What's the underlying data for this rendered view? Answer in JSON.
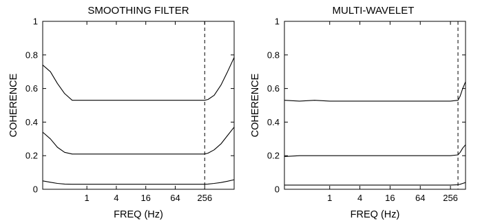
{
  "chart_data": [
    {
      "type": "line",
      "title": "SMOOTHING FILTER",
      "xlabel": "FREQ (Hz)",
      "ylabel": "COHERENCE",
      "x_scale": "log2",
      "xlim": [
        0.125,
        1024
      ],
      "ylim": [
        0,
        1
      ],
      "x_ticks": [
        1,
        4,
        16,
        64,
        256
      ],
      "x_tick_labels": [
        "1",
        "4",
        "16",
        "64",
        "256"
      ],
      "y_ticks": [
        0,
        0.2,
        0.4,
        0.6,
        0.8,
        1
      ],
      "y_tick_labels": [
        "0",
        "0.2",
        "0.4",
        "0.6",
        "0.8",
        "1"
      ],
      "grid": false,
      "vline": {
        "x": 256,
        "style": "dashed"
      },
      "series": [
        {
          "x": [
            0.125,
            0.18,
            0.25,
            0.35,
            0.5,
            1,
            2,
            4,
            8,
            16,
            32,
            64,
            128,
            256,
            300,
            400,
            550,
            750,
            1024
          ],
          "y": [
            0.74,
            0.7,
            0.63,
            0.57,
            0.53,
            0.53,
            0.53,
            0.53,
            0.53,
            0.53,
            0.53,
            0.53,
            0.53,
            0.53,
            0.535,
            0.56,
            0.62,
            0.7,
            0.785
          ]
        },
        {
          "x": [
            0.125,
            0.18,
            0.25,
            0.35,
            0.5,
            1,
            2,
            4,
            8,
            16,
            32,
            64,
            128,
            256,
            300,
            400,
            550,
            750,
            1024
          ],
          "y": [
            0.34,
            0.3,
            0.25,
            0.22,
            0.21,
            0.21,
            0.21,
            0.21,
            0.21,
            0.21,
            0.21,
            0.21,
            0.21,
            0.21,
            0.215,
            0.235,
            0.27,
            0.32,
            0.37
          ]
        },
        {
          "x": [
            0.125,
            0.18,
            0.25,
            0.35,
            0.5,
            1,
            4,
            16,
            64,
            256,
            300,
            400,
            550,
            750,
            1024
          ],
          "y": [
            0.05,
            0.042,
            0.035,
            0.031,
            0.03,
            0.03,
            0.03,
            0.03,
            0.03,
            0.03,
            0.031,
            0.035,
            0.04,
            0.048,
            0.057
          ]
        }
      ]
    },
    {
      "type": "line",
      "title": "MULTI-WAVELET",
      "xlabel": "FREQ (Hz)",
      "ylabel": "COHERENCE",
      "x_scale": "log2",
      "xlim": [
        0.125,
        512
      ],
      "ylim": [
        0,
        1
      ],
      "x_ticks": [
        1,
        4,
        16,
        64,
        256
      ],
      "x_tick_labels": [
        "1",
        "4",
        "16",
        "64",
        "256"
      ],
      "y_ticks": [
        0,
        0.2,
        0.4,
        0.6,
        0.8,
        1
      ],
      "y_tick_labels": [
        "0",
        "0.2",
        "0.4",
        "0.6",
        "0.8",
        "1"
      ],
      "grid": false,
      "vline": {
        "x": 362,
        "style": "dashed"
      },
      "series": [
        {
          "x": [
            0.125,
            0.25,
            0.5,
            1,
            2,
            4,
            8,
            16,
            32,
            64,
            128,
            256,
            362,
            400,
            450,
            512
          ],
          "y": [
            0.53,
            0.525,
            0.53,
            0.525,
            0.525,
            0.525,
            0.525,
            0.525,
            0.525,
            0.525,
            0.525,
            0.525,
            0.53,
            0.555,
            0.6,
            0.64
          ]
        },
        {
          "x": [
            0.125,
            0.25,
            0.5,
            1,
            2,
            4,
            8,
            16,
            32,
            64,
            128,
            256,
            362,
            400,
            450,
            512
          ],
          "y": [
            0.195,
            0.2,
            0.2,
            0.2,
            0.2,
            0.2,
            0.2,
            0.2,
            0.2,
            0.2,
            0.2,
            0.2,
            0.205,
            0.22,
            0.245,
            0.265
          ]
        },
        {
          "x": [
            0.125,
            1,
            4,
            16,
            64,
            256,
            362,
            400,
            450,
            512
          ],
          "y": [
            0.025,
            0.025,
            0.025,
            0.025,
            0.025,
            0.025,
            0.027,
            0.03,
            0.035,
            0.04
          ]
        }
      ]
    }
  ]
}
